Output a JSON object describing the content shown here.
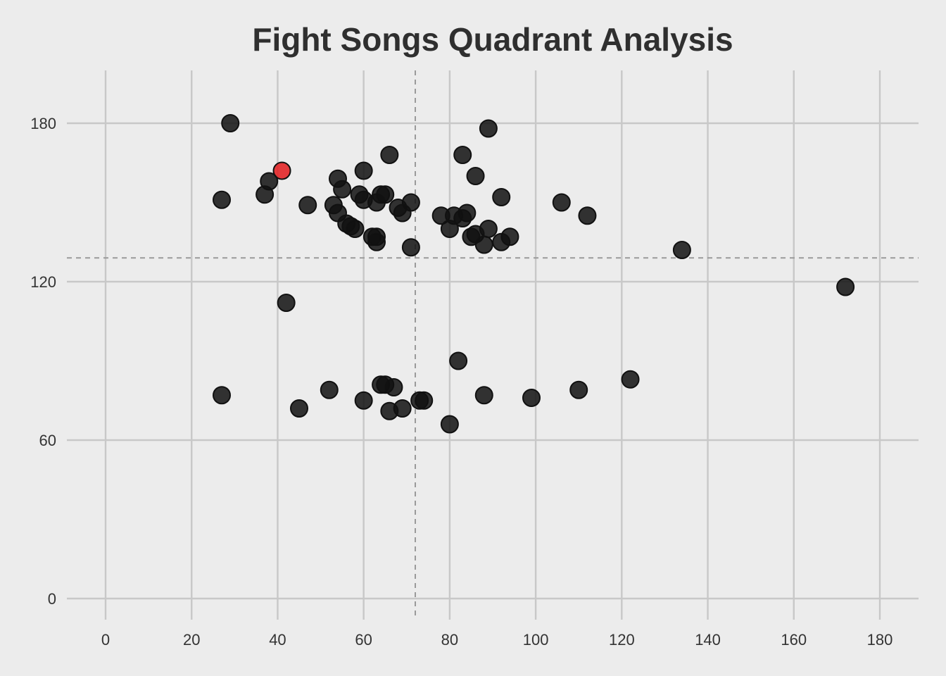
{
  "chart_data": {
    "type": "scatter",
    "title": "Fight Songs Quadrant Analysis",
    "xlabel": "",
    "ylabel": "",
    "xlim": [
      -9,
      189
    ],
    "ylim": [
      -8,
      200
    ],
    "x_ticks": [
      0,
      20,
      40,
      60,
      80,
      100,
      120,
      140,
      160,
      180
    ],
    "y_ticks": [
      0,
      60,
      120,
      180
    ],
    "grid": true,
    "reference_lines": {
      "x": 72,
      "y": 129
    },
    "colors": {
      "default_point": "#111111",
      "highlight_point": "#e31a1c",
      "background": "#ececec",
      "grid": "#c8c8c8",
      "reference": "#9a9a9a"
    },
    "points": [
      {
        "x": 29,
        "y": 180
      },
      {
        "x": 89,
        "y": 178
      },
      {
        "x": 66,
        "y": 168
      },
      {
        "x": 83,
        "y": 168
      },
      {
        "x": 41,
        "y": 162,
        "highlight": true
      },
      {
        "x": 60,
        "y": 162
      },
      {
        "x": 86,
        "y": 160
      },
      {
        "x": 54,
        "y": 159
      },
      {
        "x": 38,
        "y": 158
      },
      {
        "x": 55,
        "y": 155
      },
      {
        "x": 37,
        "y": 153
      },
      {
        "x": 59,
        "y": 153
      },
      {
        "x": 64,
        "y": 153
      },
      {
        "x": 65,
        "y": 153
      },
      {
        "x": 92,
        "y": 152
      },
      {
        "x": 27,
        "y": 151
      },
      {
        "x": 60,
        "y": 151
      },
      {
        "x": 63,
        "y": 150
      },
      {
        "x": 71,
        "y": 150
      },
      {
        "x": 106,
        "y": 150
      },
      {
        "x": 47,
        "y": 149
      },
      {
        "x": 53,
        "y": 149
      },
      {
        "x": 68,
        "y": 148
      },
      {
        "x": 54,
        "y": 146
      },
      {
        "x": 69,
        "y": 146
      },
      {
        "x": 84,
        "y": 146
      },
      {
        "x": 112,
        "y": 145
      },
      {
        "x": 78,
        "y": 145
      },
      {
        "x": 81,
        "y": 145
      },
      {
        "x": 83,
        "y": 144
      },
      {
        "x": 56,
        "y": 142
      },
      {
        "x": 57,
        "y": 141
      },
      {
        "x": 58,
        "y": 140
      },
      {
        "x": 80,
        "y": 140
      },
      {
        "x": 89,
        "y": 140
      },
      {
        "x": 86,
        "y": 138
      },
      {
        "x": 85,
        "y": 137
      },
      {
        "x": 62,
        "y": 137
      },
      {
        "x": 63,
        "y": 137
      },
      {
        "x": 94,
        "y": 137
      },
      {
        "x": 63,
        "y": 135
      },
      {
        "x": 92,
        "y": 135
      },
      {
        "x": 88,
        "y": 134
      },
      {
        "x": 71,
        "y": 133
      },
      {
        "x": 134,
        "y": 132
      },
      {
        "x": 172,
        "y": 118
      },
      {
        "x": 42,
        "y": 112
      },
      {
        "x": 82,
        "y": 90
      },
      {
        "x": 122,
        "y": 83
      },
      {
        "x": 64,
        "y": 81
      },
      {
        "x": 65,
        "y": 81
      },
      {
        "x": 67,
        "y": 80
      },
      {
        "x": 52,
        "y": 79
      },
      {
        "x": 110,
        "y": 79
      },
      {
        "x": 27,
        "y": 77
      },
      {
        "x": 88,
        "y": 77
      },
      {
        "x": 99,
        "y": 76
      },
      {
        "x": 60,
        "y": 75
      },
      {
        "x": 73,
        "y": 75
      },
      {
        "x": 74,
        "y": 75
      },
      {
        "x": 45,
        "y": 72
      },
      {
        "x": 69,
        "y": 72
      },
      {
        "x": 66,
        "y": 71
      },
      {
        "x": 80,
        "y": 66
      }
    ]
  }
}
